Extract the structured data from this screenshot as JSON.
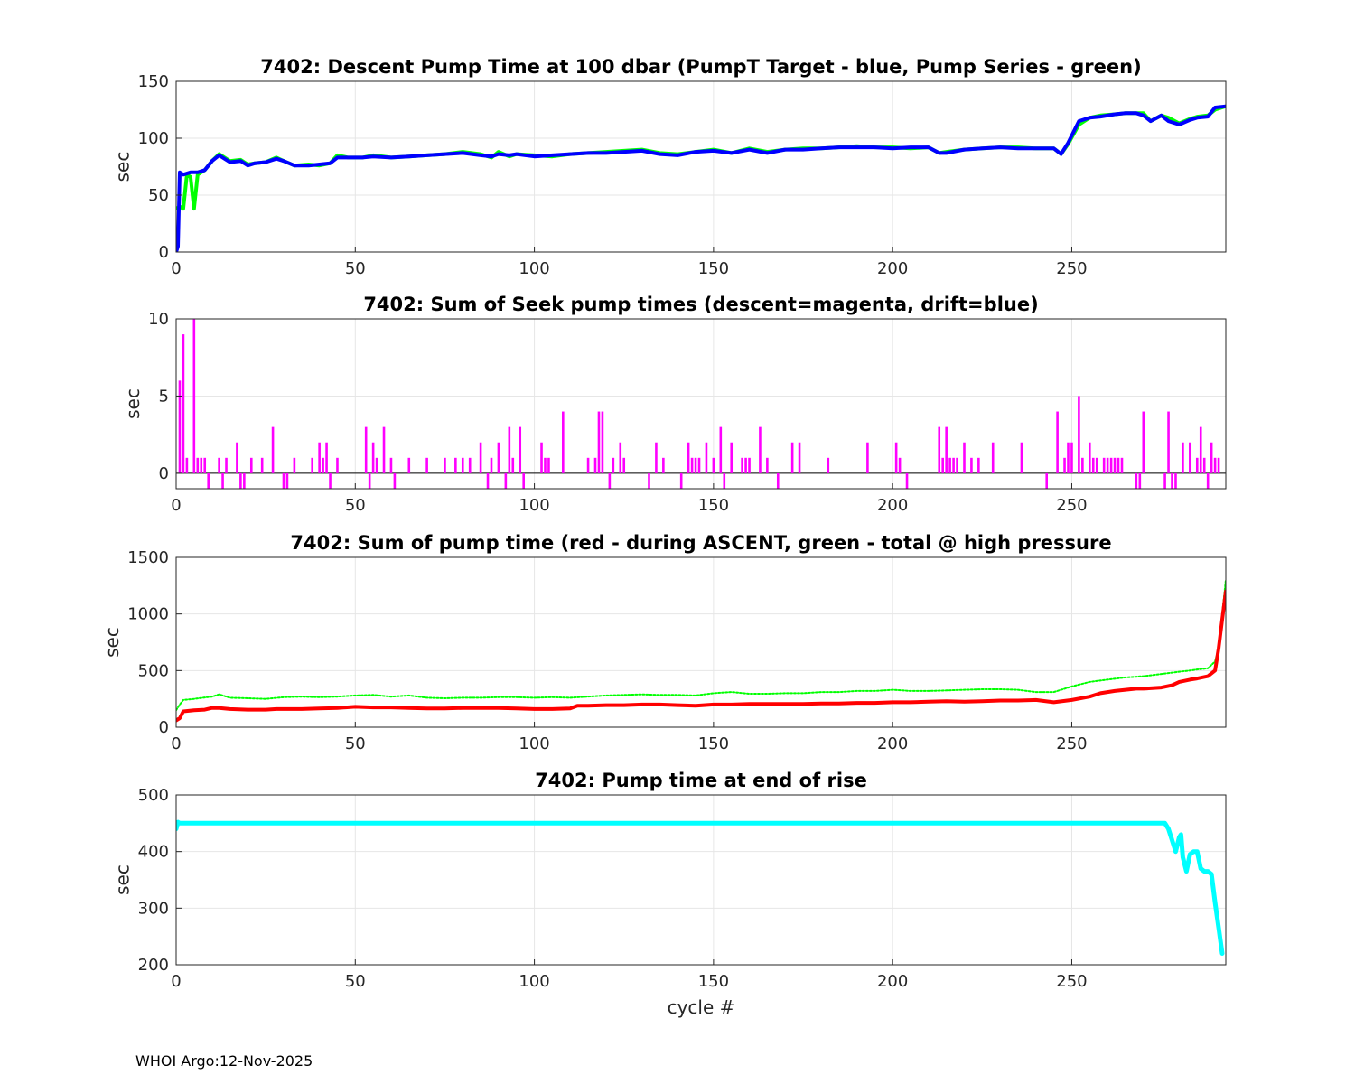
{
  "footer": "WHOI Argo:12-Nov-2025",
  "colors": {
    "blue": "#0000ff",
    "green": "#00ff00",
    "magenta": "#ff00ff",
    "red": "#ff0000",
    "cyan": "#00ffff",
    "axis": "#262626",
    "grid": "#e6e6e6"
  },
  "chart_data": [
    {
      "type": "line",
      "title": "7402: Descent Pump Time at 100 dbar (PumpT Target - blue, Pump Series - green)",
      "ylabel": "sec",
      "xlabel": "",
      "xlim": [
        0,
        293
      ],
      "ylim": [
        0,
        150
      ],
      "xticks": [
        0,
        50,
        100,
        150,
        200,
        250
      ],
      "yticks": [
        0,
        50,
        100,
        150
      ],
      "grid": true,
      "series": [
        {
          "name": "Pump Series",
          "color": "green",
          "width": 4,
          "x": [
            0,
            1,
            2,
            3,
            4,
            5,
            6,
            7,
            8,
            10,
            12,
            15,
            18,
            20,
            22,
            25,
            28,
            30,
            33,
            37,
            40,
            43,
            45,
            48,
            52,
            55,
            60,
            65,
            70,
            75,
            80,
            85,
            88,
            90,
            93,
            95,
            100,
            105,
            110,
            115,
            120,
            125,
            130,
            135,
            140,
            145,
            150,
            155,
            160,
            165,
            170,
            175,
            180,
            185,
            190,
            195,
            200,
            205,
            210,
            213,
            215,
            220,
            225,
            230,
            235,
            240,
            245,
            247,
            249,
            252,
            255,
            258,
            262,
            265,
            268,
            270,
            272,
            275,
            277,
            280,
            283,
            285,
            288,
            290,
            293
          ],
          "y": [
            38,
            40,
            38,
            68,
            66,
            38,
            68,
            70,
            72,
            80,
            86,
            80,
            81,
            77,
            78,
            79,
            83,
            80,
            76,
            77,
            76,
            78,
            85,
            83,
            83,
            85,
            83,
            84,
            85,
            86,
            88,
            86,
            83,
            88,
            84,
            86,
            85,
            84,
            86,
            87,
            88,
            89,
            90,
            87,
            86,
            88,
            90,
            87,
            91,
            88,
            90,
            91,
            91,
            92,
            93,
            92,
            92,
            91,
            92,
            87,
            88,
            90,
            91,
            92,
            92,
            91,
            91,
            86,
            95,
            112,
            118,
            120,
            121,
            122,
            122,
            122,
            115,
            120,
            118,
            113,
            117,
            119,
            120,
            125,
            128
          ]
        },
        {
          "name": "PumpT Target",
          "color": "blue",
          "width": 4,
          "x": [
            0,
            0.5,
            1,
            2,
            4,
            6,
            8,
            10,
            12,
            15,
            18,
            20,
            22,
            25,
            28,
            30,
            33,
            37,
            40,
            43,
            45,
            48,
            52,
            55,
            60,
            65,
            70,
            75,
            80,
            85,
            88,
            90,
            93,
            95,
            100,
            105,
            110,
            115,
            120,
            125,
            130,
            135,
            140,
            145,
            150,
            155,
            160,
            165,
            170,
            175,
            180,
            185,
            190,
            195,
            200,
            205,
            210,
            213,
            215,
            220,
            225,
            230,
            235,
            240,
            245,
            247,
            249,
            252,
            255,
            258,
            262,
            265,
            268,
            270,
            272,
            275,
            277,
            280,
            283,
            285,
            288,
            290,
            293
          ],
          "y": [
            0,
            5,
            70,
            68,
            70,
            70,
            72,
            80,
            85,
            79,
            80,
            76,
            78,
            79,
            82,
            80,
            76,
            76,
            77,
            78,
            83,
            83,
            83,
            84,
            83,
            84,
            85,
            86,
            87,
            85,
            84,
            86,
            85,
            86,
            84,
            85,
            86,
            87,
            87,
            88,
            89,
            86,
            85,
            88,
            89,
            87,
            90,
            87,
            90,
            90,
            91,
            92,
            92,
            92,
            91,
            92,
            92,
            87,
            87,
            90,
            91,
            92,
            91,
            91,
            91,
            86,
            96,
            115,
            118,
            119,
            121,
            122,
            122,
            120,
            115,
            120,
            115,
            112,
            116,
            118,
            119,
            127,
            128
          ]
        }
      ]
    },
    {
      "type": "bar",
      "title": "7402: Sum of Seek pump times (descent=magenta, drift=blue)",
      "ylabel": "sec",
      "xlabel": "",
      "xlim": [
        0,
        293
      ],
      "ylim": [
        -1,
        10
      ],
      "xticks": [
        0,
        50,
        100,
        150,
        200,
        250
      ],
      "yticks": [
        0,
        5,
        10
      ],
      "grid": true,
      "series": [
        {
          "name": "descent",
          "color": "magenta",
          "x": [
            1,
            2,
            3,
            5,
            6,
            7,
            8,
            9,
            12,
            13,
            14,
            17,
            18,
            19,
            21,
            24,
            27,
            30,
            31,
            33,
            38,
            40,
            41,
            42,
            43,
            45,
            53,
            54,
            55,
            56,
            58,
            60,
            61,
            65,
            70,
            75,
            78,
            80,
            82,
            85,
            87,
            88,
            90,
            92,
            93,
            94,
            96,
            97,
            102,
            103,
            104,
            108,
            115,
            117,
            118,
            119,
            121,
            122,
            124,
            125,
            132,
            134,
            136,
            141,
            143,
            144,
            145,
            146,
            148,
            150,
            152,
            153,
            155,
            158,
            159,
            160,
            163,
            165,
            168,
            172,
            174,
            182,
            193,
            201,
            202,
            204,
            213,
            214,
            215,
            216,
            217,
            218,
            220,
            222,
            224,
            228,
            236,
            243,
            246,
            248,
            249,
            250,
            252,
            253,
            255,
            256,
            257,
            259,
            260,
            261,
            262,
            263,
            264,
            268,
            269,
            270,
            276,
            277,
            278,
            279,
            281,
            283,
            285,
            286,
            287,
            288,
            289,
            290,
            291
          ],
          "y": [
            6,
            9,
            1,
            10,
            1,
            1,
            1,
            -1,
            1,
            -1,
            1,
            2,
            -1,
            -1,
            1,
            1,
            3,
            -1,
            -1,
            1,
            1,
            2,
            1,
            2,
            -1,
            1,
            3,
            -1,
            2,
            1,
            3,
            1,
            -1,
            1,
            1,
            1,
            1,
            1,
            1,
            2,
            -1,
            1,
            2,
            -1,
            3,
            1,
            3,
            -1,
            2,
            1,
            1,
            4,
            1,
            1,
            4,
            4,
            -1,
            1,
            2,
            1,
            -1,
            2,
            1,
            -1,
            2,
            1,
            1,
            1,
            2,
            1,
            3,
            -1,
            2,
            1,
            1,
            1,
            3,
            1,
            -1,
            2,
            2,
            1,
            2,
            2,
            1,
            -1,
            3,
            1,
            3,
            1,
            1,
            1,
            2,
            1,
            1,
            2,
            2,
            -1,
            4,
            1,
            2,
            2,
            5,
            1,
            2,
            1,
            1,
            1,
            1,
            1,
            1,
            1,
            1,
            -1,
            -1,
            4,
            -1,
            4,
            -1,
            -1,
            2,
            2,
            1,
            3,
            1,
            -1,
            2,
            1,
            1
          ]
        }
      ]
    },
    {
      "type": "line",
      "title": "7402: Sum of pump time (red - during ASCENT, green - total @ high pressure",
      "ylabel": "sec",
      "xlabel": "",
      "xlim": [
        0,
        293
      ],
      "ylim": [
        0,
        1500
      ],
      "xticks": [
        0,
        50,
        100,
        150,
        200,
        250
      ],
      "yticks": [
        0,
        500,
        1000,
        1500
      ],
      "grid": true,
      "series": [
        {
          "name": "total @ high pressure",
          "color": "green",
          "dashed": true,
          "width": 2,
          "x": [
            0,
            1,
            2,
            5,
            10,
            12,
            15,
            20,
            25,
            30,
            35,
            40,
            45,
            50,
            55,
            60,
            65,
            70,
            75,
            80,
            85,
            90,
            95,
            100,
            105,
            110,
            115,
            120,
            125,
            130,
            135,
            140,
            145,
            150,
            155,
            160,
            165,
            170,
            175,
            180,
            185,
            190,
            195,
            200,
            205,
            210,
            215,
            220,
            225,
            230,
            235,
            240,
            245,
            250,
            255,
            260,
            265,
            270,
            275,
            280,
            283,
            285,
            288,
            290,
            291,
            292,
            293
          ],
          "y": [
            150,
            200,
            240,
            250,
            270,
            290,
            260,
            255,
            250,
            265,
            270,
            265,
            270,
            280,
            285,
            270,
            280,
            260,
            255,
            260,
            260,
            265,
            265,
            260,
            265,
            260,
            270,
            280,
            285,
            290,
            285,
            285,
            280,
            300,
            310,
            295,
            295,
            300,
            300,
            310,
            310,
            320,
            320,
            330,
            320,
            320,
            325,
            330,
            335,
            335,
            330,
            310,
            310,
            360,
            400,
            420,
            440,
            450,
            470,
            490,
            500,
            510,
            520,
            580,
            700,
            1000,
            1300
          ]
        },
        {
          "name": "during ASCENT",
          "color": "red",
          "width": 4,
          "x": [
            0,
            1,
            2,
            5,
            8,
            10,
            12,
            15,
            20,
            25,
            28,
            30,
            35,
            40,
            45,
            50,
            55,
            60,
            65,
            70,
            75,
            80,
            85,
            90,
            95,
            100,
            105,
            110,
            112,
            115,
            120,
            125,
            130,
            135,
            140,
            145,
            150,
            155,
            160,
            165,
            170,
            175,
            180,
            185,
            190,
            195,
            200,
            205,
            210,
            215,
            220,
            225,
            230,
            235,
            240,
            245,
            250,
            255,
            258,
            262,
            265,
            268,
            270,
            275,
            278,
            280,
            283,
            285,
            288,
            290,
            291,
            292,
            293
          ],
          "y": [
            60,
            80,
            140,
            150,
            155,
            170,
            170,
            160,
            155,
            155,
            160,
            160,
            160,
            165,
            170,
            180,
            175,
            175,
            170,
            165,
            165,
            170,
            170,
            170,
            165,
            160,
            160,
            165,
            190,
            190,
            195,
            195,
            200,
            200,
            195,
            190,
            200,
            200,
            205,
            205,
            205,
            205,
            210,
            210,
            215,
            215,
            220,
            220,
            225,
            230,
            225,
            230,
            235,
            235,
            240,
            220,
            240,
            270,
            300,
            320,
            330,
            340,
            340,
            350,
            370,
            400,
            420,
            430,
            450,
            500,
            700,
            950,
            1200
          ]
        }
      ]
    },
    {
      "type": "line",
      "title": "7402: Pump time at end of rise",
      "ylabel": "sec",
      "xlabel": "cycle #",
      "xlim": [
        0,
        293
      ],
      "ylim": [
        200,
        500
      ],
      "xticks": [
        0,
        50,
        100,
        150,
        200,
        250
      ],
      "yticks": [
        200,
        300,
        400,
        500
      ],
      "grid": true,
      "series": [
        {
          "name": "Pump time at end of rise",
          "color": "cyan",
          "width": 5,
          "x": [
            0,
            0.5,
            1,
            100,
            200,
            276,
            277,
            278,
            279,
            280,
            280.5,
            281,
            282,
            283,
            284,
            285,
            286,
            287,
            288,
            289,
            290,
            291,
            292
          ],
          "y": [
            440,
            452,
            450,
            450,
            450,
            450,
            440,
            420,
            400,
            425,
            430,
            390,
            365,
            395,
            400,
            400,
            370,
            365,
            365,
            360,
            310,
            265,
            220
          ]
        }
      ]
    }
  ]
}
